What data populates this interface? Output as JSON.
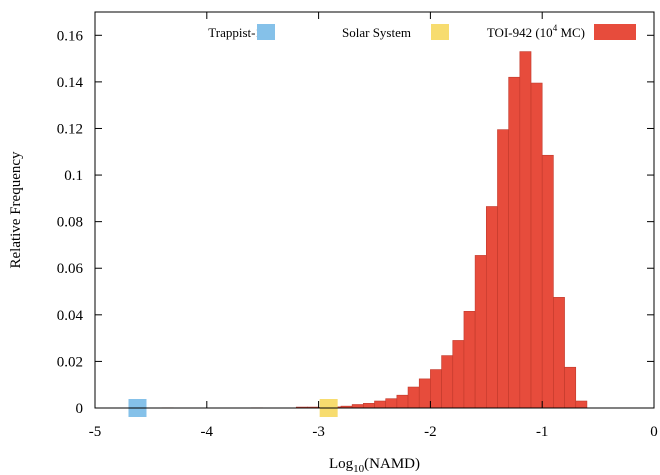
{
  "chart_data": {
    "type": "bar",
    "xlabel": "Log",
    "xlabel_subscript": "10",
    "xlabel_suffix": "(NAMD)",
    "ylabel": "Relative Frequency",
    "xlim": [
      -5,
      0
    ],
    "ylim": [
      0,
      0.17
    ],
    "x_ticks": [
      "-5",
      "-4",
      "-3",
      "-2",
      "-1",
      "0"
    ],
    "y_ticks": [
      "0",
      "0.02",
      "0.04",
      "0.06",
      "0.08",
      "0.1",
      "0.12",
      "0.14",
      "0.16"
    ],
    "legend_placement": "top",
    "legend": [
      {
        "label": "Trappist-1",
        "color": "#85c1e9"
      },
      {
        "label": "Solar System",
        "color": "#f7dc6f"
      },
      {
        "label": "TOI-942 (10",
        "sup": "4",
        "label_after": " MC)",
        "color": "#e74c3c"
      }
    ],
    "series": [
      {
        "name": "TOI-942 (10^4 MC)",
        "color": "#e74c3c",
        "bin_width": 0.1,
        "bins": [
          {
            "x0": -4.4,
            "value": 0.0001
          },
          {
            "x0": -3.6,
            "value": 0.0001
          },
          {
            "x0": -3.2,
            "value": 0.0004
          },
          {
            "x0": -3.1,
            "value": 0.0004
          },
          {
            "x0": -3.0,
            "value": 0.0003
          },
          {
            "x0": -2.9,
            "value": 0.0005
          },
          {
            "x0": -2.8,
            "value": 0.0008
          },
          {
            "x0": -2.7,
            "value": 0.0015
          },
          {
            "x0": -2.6,
            "value": 0.002
          },
          {
            "x0": -2.5,
            "value": 0.003
          },
          {
            "x0": -2.4,
            "value": 0.004
          },
          {
            "x0": -2.3,
            "value": 0.0055
          },
          {
            "x0": -2.2,
            "value": 0.009
          },
          {
            "x0": -2.1,
            "value": 0.0125
          },
          {
            "x0": -2.0,
            "value": 0.0165
          },
          {
            "x0": -1.9,
            "value": 0.0225
          },
          {
            "x0": -1.8,
            "value": 0.029
          },
          {
            "x0": -1.7,
            "value": 0.0415
          },
          {
            "x0": -1.6,
            "value": 0.0655
          },
          {
            "x0": -1.5,
            "value": 0.0865
          },
          {
            "x0": -1.4,
            "value": 0.1195
          },
          {
            "x0": -1.3,
            "value": 0.142
          },
          {
            "x0": -1.2,
            "value": 0.153
          },
          {
            "x0": -1.1,
            "value": 0.1395
          },
          {
            "x0": -1.0,
            "value": 0.1085
          },
          {
            "x0": -0.9,
            "value": 0.0475
          },
          {
            "x0": -0.8,
            "value": 0.0175
          },
          {
            "x0": -0.7,
            "value": 0.003
          }
        ]
      }
    ],
    "markers": [
      {
        "name": "Trappist-1",
        "x": -4.62,
        "y": 0,
        "color": "#85c1e9"
      },
      {
        "name": "Solar System",
        "x": -2.91,
        "y": 0,
        "color": "#f7dc6f"
      }
    ]
  }
}
